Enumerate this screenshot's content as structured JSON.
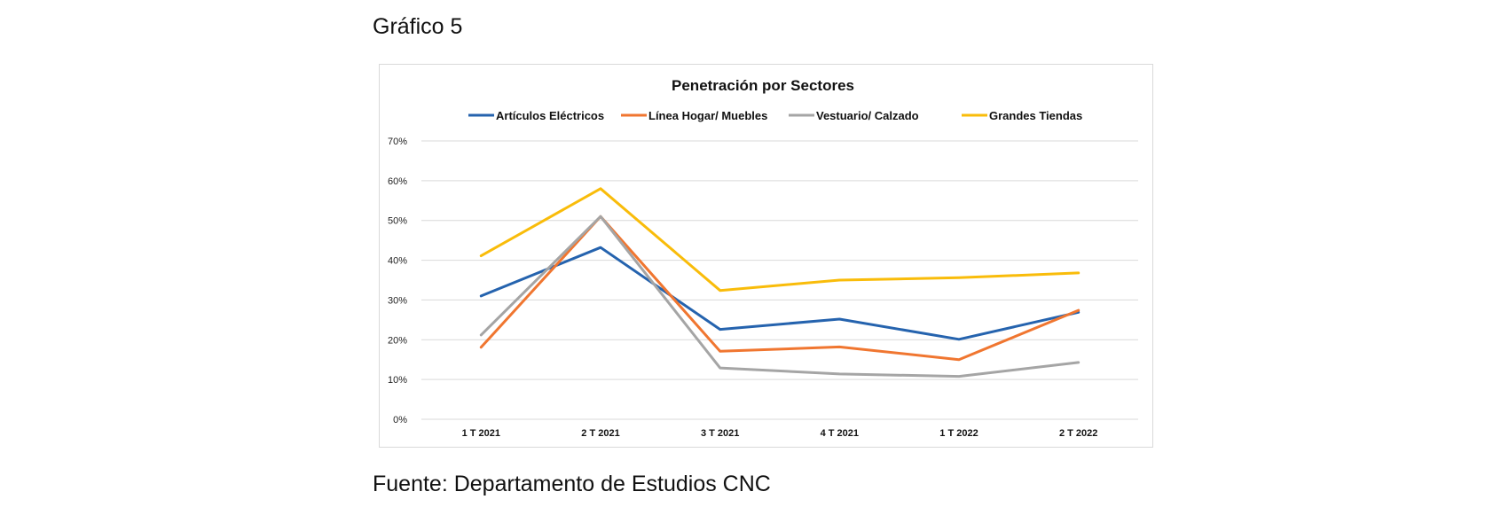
{
  "page": {
    "title": "Gráfico 5",
    "source": "Fuente: Departamento de Estudios CNC"
  },
  "chart_data": {
    "type": "line",
    "title": "Penetración por Sectores",
    "xlabel": "",
    "ylabel": "",
    "categories": [
      "1 T 2021",
      "2 T 2021",
      "3 T 2021",
      "4 T 2021",
      "1 T 2022",
      "2 T 2022"
    ],
    "ylim": [
      0,
      70
    ],
    "yticks": [
      0,
      10,
      20,
      30,
      40,
      50,
      60,
      70
    ],
    "ytick_labels": [
      "0%",
      "10%",
      "20%",
      "30%",
      "40%",
      "50%",
      "60%",
      "70%"
    ],
    "grid": true,
    "legend_position": "top",
    "series": [
      {
        "name": "Artículos Eléctricos",
        "color": "#2563ae",
        "values": [
          31,
          43.2,
          22.6,
          25.2,
          20.1,
          26.9
        ]
      },
      {
        "name": "Línea Hogar/ Muebles",
        "color": "#f07630",
        "values": [
          18.1,
          51,
          17.1,
          18.2,
          15,
          27.4
        ]
      },
      {
        "name": "Vestuario/ Calzado",
        "color": "#a5a5a5",
        "values": [
          21.2,
          51,
          12.9,
          11.4,
          10.8,
          14.3
        ]
      },
      {
        "name": "Grandes Tiendas",
        "color": "#f9bc0a",
        "values": [
          41.1,
          58,
          32.4,
          35,
          35.6,
          36.8
        ]
      }
    ]
  }
}
